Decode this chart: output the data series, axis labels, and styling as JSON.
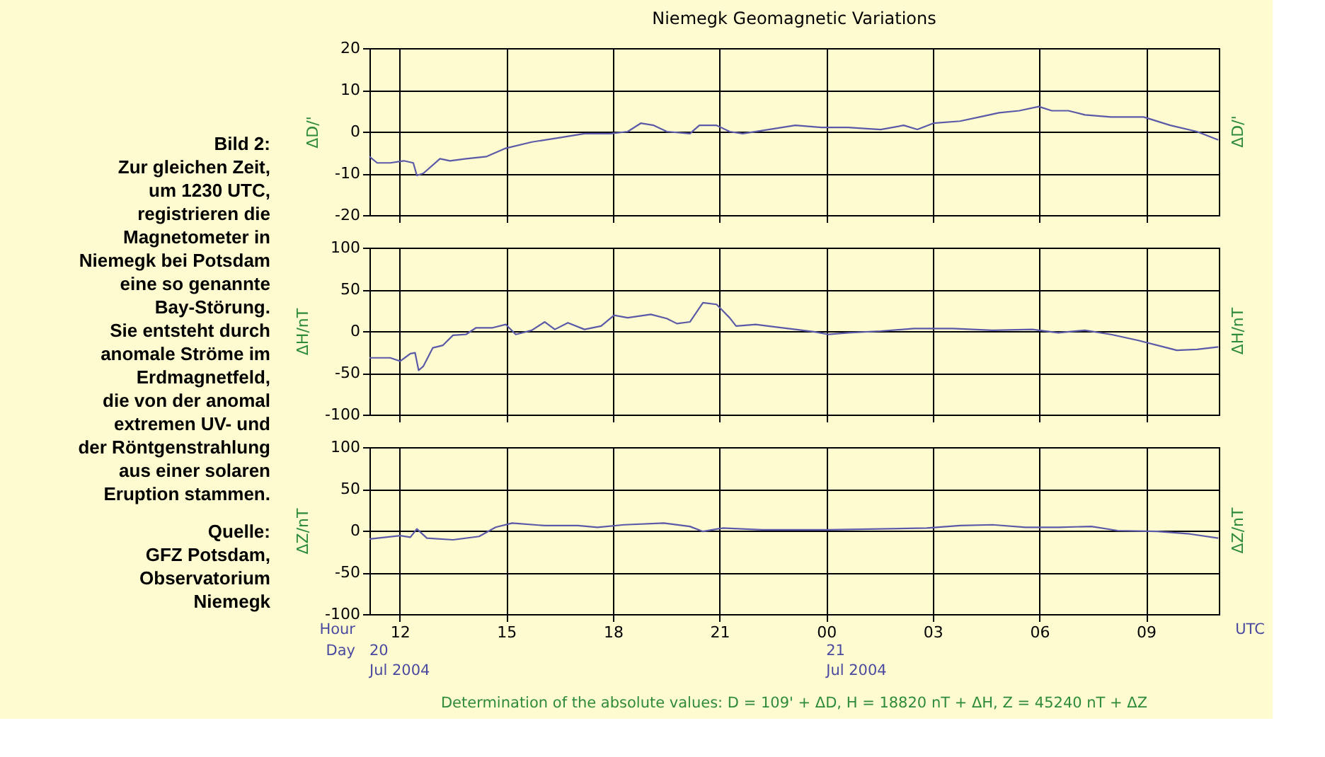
{
  "chart_data": [
    {
      "type": "line",
      "title": "Niemegk   Geomagnetic Variations",
      "ylabel": "ΔD/'",
      "y2label": "ΔD/'",
      "xlim": [
        "2004-07-20T11:09",
        "2004-07-21T11:03"
      ],
      "xticks": [
        {
          "value": "2004-07-20T12:00",
          "label": null
        },
        {
          "value": "2004-07-20T15:00",
          "label": null
        },
        {
          "value": "2004-07-20T18:00",
          "label": null
        },
        {
          "value": "2004-07-20T21:00",
          "label": null
        },
        {
          "value": "2004-07-21T00:00",
          "label": null
        },
        {
          "value": "2004-07-21T03:00",
          "label": null
        },
        {
          "value": "2004-07-21T06:00",
          "label": null
        },
        {
          "value": "2004-07-21T09:00",
          "label": null
        }
      ],
      "ylim": [
        -20,
        20
      ],
      "yticks": [
        -20,
        -10,
        0,
        10,
        20
      ],
      "grid": true,
      "tick_labels": "y",
      "annotations": [
        "Bild 2:\nZur gleichen Zeit,\num 1230 UTC,\nregistrieren die\nMagnetometer in\nNiemegk bei Potsdam\neine so genannte\nBay-Störung.\nSie entsteht durch\nanomale Ströme im\nErdmagnetfeld,\ndie von der anomal\nextremen UV- und\nder Röntgenstrahlung\naus einer solaren\nEruption stammen.",
        "Quelle:\nGFZ Potsdam,\nObservatorium\nNiemegk"
      ],
      "x": [
        "2004-07-20T11:09",
        "2004-07-20T11:22",
        "2004-07-20T11:44",
        "2004-07-20T12:07",
        "2004-07-20T12:23",
        "2004-07-20T12:29",
        "2004-07-20T12:40",
        "2004-07-20T13:08",
        "2004-07-20T13:25",
        "2004-07-20T13:52",
        "2004-07-20T14:26",
        "2004-07-20T14:59",
        "2004-07-20T15:43",
        "2004-07-20T16:28",
        "2004-07-20T17:12",
        "2004-07-20T17:56",
        "2004-07-20T18:25",
        "2004-07-20T18:47",
        "2004-07-20T19:09",
        "2004-07-20T19:31",
        "2004-07-20T20:10",
        "2004-07-20T20:26",
        "2004-07-20T20:55",
        "2004-07-20T21:17",
        "2004-07-20T21:39",
        "2004-07-20T22:23",
        "2004-07-20T23:08",
        "2004-07-20T23:52",
        "2004-07-21T00:37",
        "2004-07-21T01:32",
        "2004-07-21T02:11",
        "2004-07-21T02:34",
        "2004-07-21T03:01",
        "2004-07-21T03:46",
        "2004-07-21T04:19",
        "2004-07-21T04:52",
        "2004-07-21T05:26",
        "2004-07-21T05:59",
        "2004-07-21T06:21",
        "2004-07-21T06:49",
        "2004-07-21T07:17",
        "2004-07-21T08:01",
        "2004-07-21T08:56",
        "2004-07-21T09:41",
        "2004-07-21T10:26",
        "2004-07-21T11:02"
      ],
      "series": [
        {
          "color": "#5a5aa8",
          "values": [
            -6,
            -7.5,
            -7.5,
            -7,
            -7.5,
            -10.5,
            -10,
            -6.5,
            -7,
            -6.5,
            -6,
            -4,
            -2.5,
            -1.5,
            -0.5,
            -0.5,
            0,
            2,
            1.5,
            0,
            -0.5,
            1.5,
            1.5,
            0,
            -0.5,
            0.5,
            1.5,
            1,
            1,
            0.5,
            1.5,
            0.5,
            2,
            2.5,
            3.5,
            4.5,
            5,
            6,
            5,
            5,
            4,
            3.5,
            3.5,
            1.5,
            0,
            -2
          ]
        }
      ]
    },
    {
      "type": "line",
      "ylabel": "ΔH/nT",
      "y2label": "ΔH/nT",
      "xlim": [
        "2004-07-20T11:09",
        "2004-07-21T11:03"
      ],
      "xticks": [
        {
          "value": "2004-07-20T12:00",
          "label": null
        },
        {
          "value": "2004-07-20T15:00",
          "label": null
        },
        {
          "value": "2004-07-20T18:00",
          "label": null
        },
        {
          "value": "2004-07-20T21:00",
          "label": null
        },
        {
          "value": "2004-07-21T00:00",
          "label": null
        },
        {
          "value": "2004-07-21T03:00",
          "label": null
        },
        {
          "value": "2004-07-21T06:00",
          "label": null
        },
        {
          "value": "2004-07-21T09:00",
          "label": null
        }
      ],
      "ylim": [
        -100,
        100
      ],
      "yticks": [
        -100,
        -50,
        0,
        50,
        100
      ],
      "grid": true,
      "tick_labels": "y",
      "x": [
        "2004-07-20T11:09",
        "2004-07-20T11:44",
        "2004-07-20T12:01",
        "2004-07-20T12:18",
        "2004-07-20T12:26",
        "2004-07-20T12:32",
        "2004-07-20T12:40",
        "2004-07-20T12:56",
        "2004-07-20T13:13",
        "2004-07-20T13:30",
        "2004-07-20T13:52",
        "2004-07-20T14:09",
        "2004-07-20T14:37",
        "2004-07-20T14:59",
        "2004-07-20T15:16",
        "2004-07-20T15:43",
        "2004-07-20T16:05",
        "2004-07-20T16:22",
        "2004-07-20T16:44",
        "2004-07-20T17:12",
        "2004-07-20T17:40",
        "2004-07-20T18:02",
        "2004-07-20T18:25",
        "2004-07-20T19:04",
        "2004-07-20T19:31",
        "2004-07-20T19:48",
        "2004-07-20T20:10",
        "2004-07-20T20:32",
        "2004-07-20T20:55",
        "2004-07-20T21:17",
        "2004-07-20T21:28",
        "2004-07-20T22:01",
        "2004-07-20T22:34",
        "2004-07-20T23:08",
        "2004-07-20T23:41",
        "2004-07-21T00:04",
        "2004-07-21T00:37",
        "2004-07-21T01:32",
        "2004-07-21T02:28",
        "2004-07-21T03:34",
        "2004-07-21T04:41",
        "2004-07-21T05:48",
        "2004-07-21T06:32",
        "2004-07-21T07:17",
        "2004-07-21T08:01",
        "2004-07-21T08:46",
        "2004-07-21T09:30",
        "2004-07-21T09:52",
        "2004-07-21T10:26",
        "2004-07-21T11:02"
      ],
      "series": [
        {
          "color": "#5a5aa8",
          "values": [
            -32,
            -32,
            -36,
            -27,
            -26,
            -47,
            -42,
            -20,
            -17,
            -5,
            -4,
            4,
            4,
            8,
            -4,
            1,
            11,
            2,
            10,
            2,
            6,
            19,
            16,
            20,
            15,
            9,
            11,
            34,
            32,
            16,
            6,
            8,
            5,
            2,
            -1,
            -4,
            -2,
            0,
            3,
            3,
            1,
            2,
            -2,
            1,
            -4,
            -11,
            -19,
            -23,
            -22,
            -19
          ]
        }
      ]
    },
    {
      "type": "line",
      "ylabel": "ΔZ/nT",
      "y2label": "ΔZ/nT",
      "xlim": [
        "2004-07-20T11:09",
        "2004-07-21T11:03"
      ],
      "xticks": [
        {
          "value": "2004-07-20T12:00",
          "label": "12"
        },
        {
          "value": "2004-07-20T15:00",
          "label": "15"
        },
        {
          "value": "2004-07-20T18:00",
          "label": "18"
        },
        {
          "value": "2004-07-20T21:00",
          "label": "21"
        },
        {
          "value": "2004-07-21T00:00",
          "label": "00"
        },
        {
          "value": "2004-07-21T03:00",
          "label": "03"
        },
        {
          "value": "2004-07-21T06:00",
          "label": "06"
        },
        {
          "value": "2004-07-21T09:00",
          "label": "09"
        }
      ],
      "ylim": [
        -100,
        100
      ],
      "yticks": [
        -100,
        -50,
        0,
        50,
        100
      ],
      "grid": true,
      "annotations": [
        "Hour",
        "Day",
        "UTC",
        "20\nJul 2004",
        "21\nJul 2004",
        "Determination of the absolute values: D = 109' + ΔD, H = 18820 nT + ΔH, Z = 45240 nT + ΔZ"
      ],
      "x": [
        "2004-07-20T11:09",
        "2004-07-20T12:01",
        "2004-07-20T12:18",
        "2004-07-20T12:29",
        "2004-07-20T12:46",
        "2004-07-20T13:30",
        "2004-07-20T14:14",
        "2004-07-20T14:42",
        "2004-07-20T15:10",
        "2004-07-20T16:05",
        "2004-07-20T17:01",
        "2004-07-20T17:34",
        "2004-07-20T18:19",
        "2004-07-20T19:26",
        "2004-07-20T20:10",
        "2004-07-20T20:32",
        "2004-07-20T21:05",
        "2004-07-20T22:12",
        "2004-07-21T00:04",
        "2004-07-21T02:50",
        "2004-07-21T03:46",
        "2004-07-21T04:41",
        "2004-07-21T05:37",
        "2004-07-21T06:32",
        "2004-07-21T07:28",
        "2004-07-21T08:12",
        "2004-07-21T09:19",
        "2004-07-21T10:14",
        "2004-07-21T11:02"
      ],
      "series": [
        {
          "color": "#5a5aa8",
          "values": [
            -10,
            -6,
            -8,
            2,
            -9,
            -11,
            -7,
            4,
            9,
            6,
            6,
            4,
            7,
            9,
            5,
            -1,
            3,
            1,
            1,
            3,
            6,
            7,
            4,
            4,
            5,
            0,
            -1,
            -4,
            -9
          ]
        }
      ]
    }
  ]
}
